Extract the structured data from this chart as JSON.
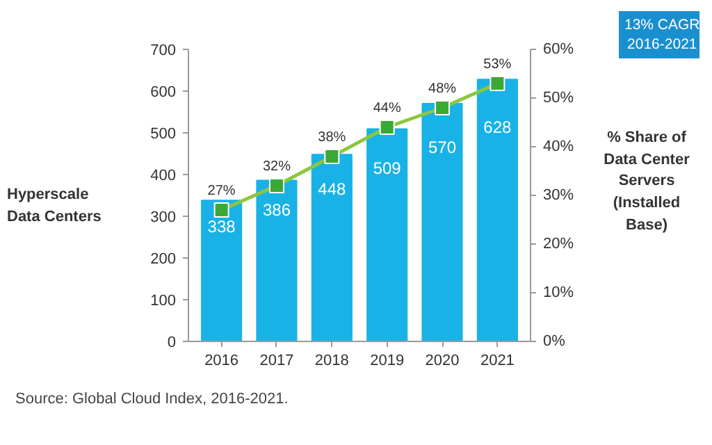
{
  "chart_data": {
    "type": "bar",
    "categories": [
      "2016",
      "2017",
      "2018",
      "2019",
      "2020",
      "2021"
    ],
    "series": [
      {
        "color": "#19b2e6",
        "values": [
          338,
          386,
          448,
          509,
          570,
          628
        ],
        "value_labels": [
          "338",
          "386",
          "448",
          "509",
          "570",
          "628"
        ]
      },
      {
        "type": "line",
        "axis": "y2",
        "color": "#8dc63f",
        "values": [
          27,
          32,
          38,
          44,
          48,
          53
        ],
        "value_labels": [
          "27%",
          "32%",
          "38%",
          "44%",
          "48%",
          "53%"
        ]
      }
    ],
    "ylim": [
      0,
      700
    ],
    "yticks": [
      0,
      100,
      200,
      300,
      400,
      500,
      600,
      700
    ],
    "y2lim": [
      0,
      60
    ],
    "y2ticks": [
      {
        "value": 0,
        "label": "0%"
      },
      {
        "value": 10,
        "label": "10%"
      },
      {
        "value": 20,
        "label": "20%"
      },
      {
        "value": 30,
        "label": "30%"
      },
      {
        "value": 40,
        "label": "40%"
      },
      {
        "value": 50,
        "label": "50%"
      },
      {
        "value": 60,
        "label": "60%"
      }
    ],
    "ylabel": "Hyperscale Data Centers",
    "y2label": "% Share of Data Center Servers (Installed Base)",
    "marker": "square",
    "grid": false,
    "annotations": [
      "13% CAGR 2016-2021",
      "Source: Global Cloud Index, 2016-2021."
    ]
  }
}
